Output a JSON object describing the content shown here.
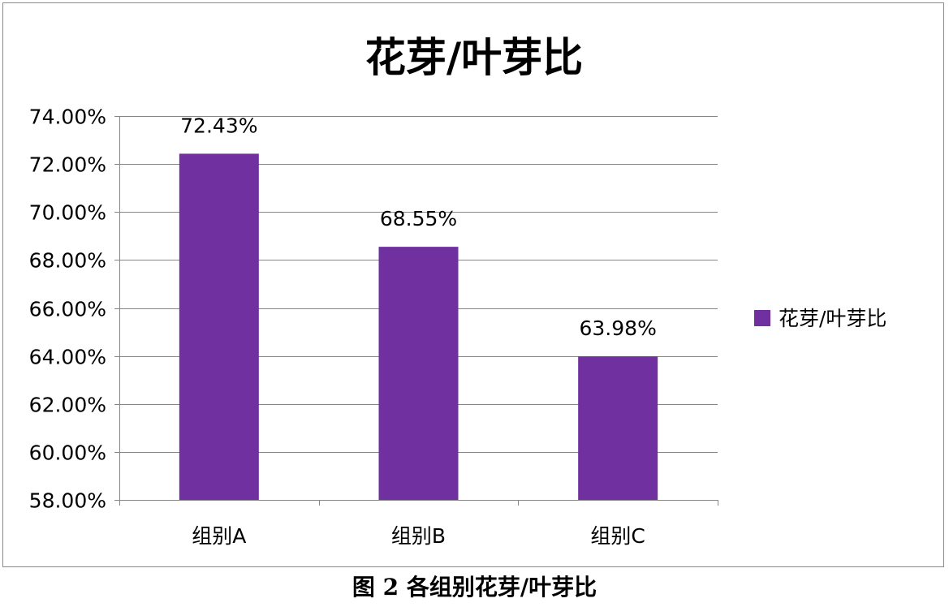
{
  "caption": "图 2  各组别花芽/叶芽比",
  "colors": {
    "bar": "#7030A0",
    "grid": "#868686",
    "axis": "#868686",
    "text": "#000000",
    "frame": "#8a8a8a"
  },
  "chart_data": {
    "type": "bar",
    "title": "花芽/叶芽比",
    "categories": [
      "组别A",
      "组别B",
      "组别C"
    ],
    "series": [
      {
        "name": "花芽/叶芽比",
        "values": [
          72.43,
          68.55,
          63.98
        ],
        "labels": [
          "72.43%",
          "68.55%",
          "63.98%"
        ]
      }
    ],
    "ylim": [
      58,
      74
    ],
    "yticks": [
      58,
      60,
      62,
      64,
      66,
      68,
      70,
      72,
      74
    ],
    "ytick_labels": [
      "58.00%",
      "60.00%",
      "62.00%",
      "64.00%",
      "66.00%",
      "68.00%",
      "70.00%",
      "72.00%",
      "74.00%"
    ],
    "xlabel": "",
    "ylabel": "",
    "grid": true,
    "legend_position": "right"
  }
}
